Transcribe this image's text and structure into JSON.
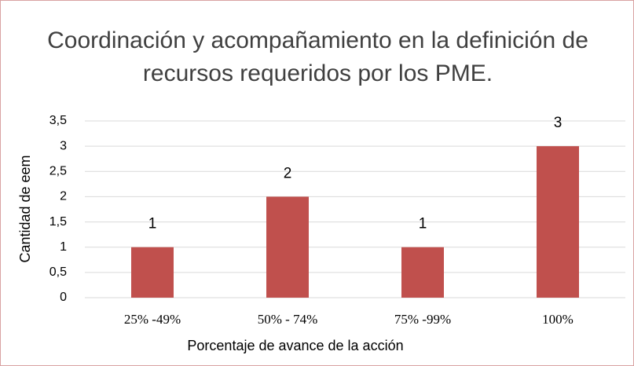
{
  "chart_data": {
    "type": "bar",
    "title": "Coordinación y acompañamiento en la definición de recursos requeridos por los PME.",
    "categories": [
      "25% -49%",
      "50% - 74%",
      "75% -99%",
      "100%"
    ],
    "values": [
      1,
      2,
      1,
      3
    ],
    "color": "#c0504d",
    "xlabel": "Porcentaje de avance de la acción",
    "ylabel": "Cantidad de eem",
    "ylim": [
      0,
      3.5
    ],
    "yticks": [
      0,
      {
        "value": 0.5,
        "label": "0,5"
      },
      1,
      {
        "value": 1.5,
        "label": "1,5"
      },
      2,
      {
        "value": 2.5,
        "label": "2,5"
      },
      3,
      {
        "value": 3.5,
        "label": "3,5"
      }
    ],
    "grid": true
  }
}
